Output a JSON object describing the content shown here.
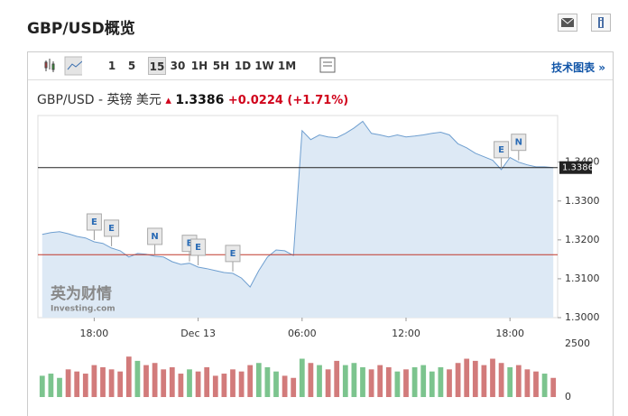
{
  "header": {
    "title": "GBP/USD概览",
    "link": "技术图表 »"
  },
  "toolbar": {
    "intervals": [
      "1",
      "5",
      "15",
      "30",
      "1H",
      "5H",
      "1D",
      "1W",
      "1M"
    ],
    "selected": 2
  },
  "quote": {
    "pair": "GBP/USD - 英镑 美元",
    "price": "1.3386",
    "change": "+0.0224",
    "change_percent": "(+1.71%)"
  },
  "watermark": {
    "brand": "英为财情",
    "site": "Investing.com"
  },
  "chart_data": {
    "type": "area",
    "categories": [
      null,
      null,
      null,
      null,
      null,
      null,
      "18:00",
      null,
      null,
      null,
      null,
      null,
      null,
      null,
      null,
      null,
      null,
      null,
      "Dec 13",
      null,
      null,
      null,
      null,
      null,
      null,
      null,
      null,
      null,
      null,
      null,
      "06:00",
      null,
      null,
      null,
      null,
      null,
      null,
      null,
      null,
      null,
      null,
      null,
      "12:00",
      null,
      null,
      null,
      null,
      null,
      null,
      null,
      null,
      null,
      null,
      null,
      "18:00",
      null,
      null,
      null,
      null,
      null
    ],
    "series": [
      {
        "name": "GBP/USD",
        "color": "#6f9fd0",
        "values": [
          1.3214,
          1.3219,
          1.3221,
          1.3216,
          1.3209,
          1.3205,
          1.3195,
          1.3191,
          1.3179,
          1.3172,
          1.3156,
          1.3165,
          1.3163,
          1.3158,
          1.3156,
          1.3144,
          1.3137,
          1.314,
          1.313,
          1.3126,
          1.3121,
          1.3116,
          1.3114,
          1.3102,
          1.3079,
          1.3121,
          1.3156,
          1.3174,
          1.3172,
          1.316,
          1.3481,
          1.3458,
          1.347,
          1.3465,
          1.3463,
          1.3474,
          1.3488,
          1.3505,
          1.3474,
          1.347,
          1.3465,
          1.347,
          1.3465,
          1.3467,
          1.347,
          1.3474,
          1.3477,
          1.347,
          1.3447,
          1.3437,
          1.3423,
          1.3414,
          1.3405,
          1.3381,
          1.3412,
          1.34,
          1.3393,
          1.3388,
          1.3388,
          1.3386
        ]
      },
      {
        "name": "Volume",
        "axis": "y2",
        "values": [
          1000,
          1100,
          900,
          1300,
          1200,
          1100,
          1500,
          1400,
          1300,
          1200,
          1900,
          1700,
          1500,
          1600,
          1300,
          1400,
          1100,
          1300,
          1200,
          1400,
          1000,
          1100,
          1300,
          1200,
          1500,
          1600,
          1400,
          1200,
          1000,
          900,
          1800,
          1600,
          1500,
          1300,
          1700,
          1500,
          1600,
          1400,
          1300,
          1500,
          1400,
          1200,
          1300,
          1400,
          1500,
          1200,
          1400,
          1300,
          1600,
          1800,
          1700,
          1500,
          1800,
          1600,
          1400,
          1500,
          1300,
          1200,
          1100,
          900
        ]
      }
    ],
    "events": [
      null,
      null,
      null,
      null,
      null,
      null,
      "E",
      null,
      "E",
      null,
      null,
      null,
      null,
      "N",
      null,
      null,
      null,
      "E",
      "E",
      null,
      null,
      null,
      "E",
      null,
      null,
      null,
      null,
      null,
      null,
      null,
      null,
      null,
      null,
      null,
      null,
      null,
      null,
      null,
      null,
      null,
      null,
      null,
      null,
      null,
      null,
      null,
      null,
      null,
      null,
      null,
      null,
      null,
      null,
      "E",
      null,
      "N",
      null,
      null,
      null,
      null
    ],
    "reference_lines": [
      {
        "value": 1.3386,
        "label": "1.3386",
        "color": "#222222"
      },
      {
        "value": 1.3162,
        "color": "#c0392b"
      }
    ],
    "ylim": [
      1.3,
      1.352
    ],
    "yticks": [
      {
        "value": 1.3,
        "label": "1.3000"
      },
      {
        "value": 1.31,
        "label": "1.3100"
      },
      {
        "value": 1.32,
        "label": "1.3200"
      },
      {
        "value": 1.33,
        "label": "1.3300"
      },
      {
        "value": 1.34,
        "label": "1.3400"
      }
    ],
    "y2lim": [
      0,
      2500
    ],
    "y2ticks": [
      0,
      2500
    ],
    "up_color": "#7cc48e",
    "down_color": "#d27b7b"
  }
}
